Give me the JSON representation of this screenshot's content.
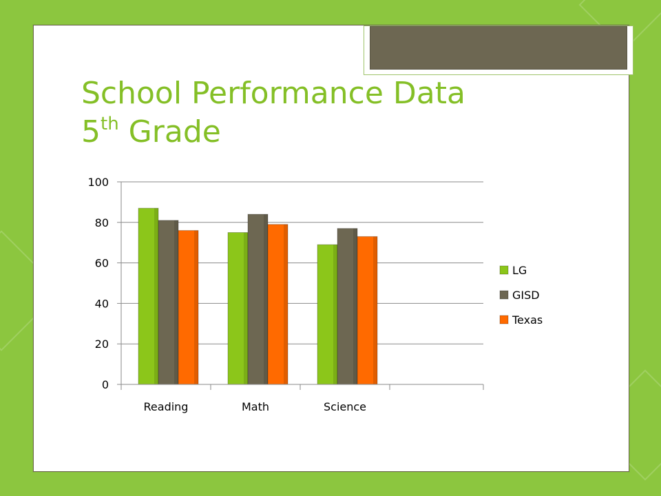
{
  "slide": {
    "title_line1": "School Performance Data",
    "title_line2_base": "5",
    "title_line2_sup": "th",
    "title_line2_rest": " Grade"
  },
  "colors": {
    "background": "#8cc63f",
    "title": "#84bf26",
    "LG": "#8cc61a",
    "GISD": "#6d6752",
    "Texas": "#ff6a00"
  },
  "chart_data": {
    "type": "bar",
    "title": "",
    "xlabel": "",
    "ylabel": "",
    "categories": [
      "Reading",
      "Math",
      "Science"
    ],
    "series": [
      {
        "name": "LG",
        "values": [
          87,
          75,
          69
        ]
      },
      {
        "name": "GISD",
        "values": [
          81,
          84,
          77
        ]
      },
      {
        "name": "Texas",
        "values": [
          76,
          79,
          73
        ]
      }
    ],
    "ylim": [
      0,
      100
    ],
    "yticks": [
      0,
      20,
      40,
      60,
      80,
      100
    ],
    "grid": true,
    "legend": "right"
  }
}
